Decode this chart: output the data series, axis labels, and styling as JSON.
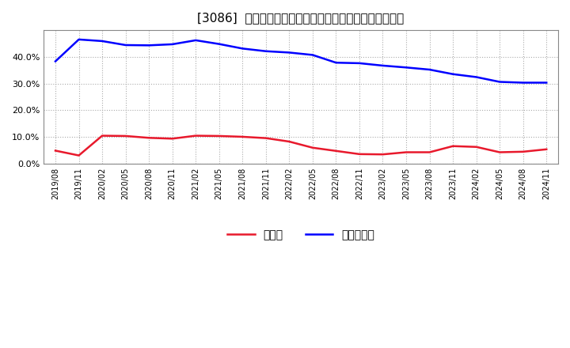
{
  "title": "[3086]  現預金、有利子負債の総資産に対する比率の推移",
  "x_labels": [
    "2019/08",
    "2019/11",
    "2020/02",
    "2020/05",
    "2020/08",
    "2020/11",
    "2021/02",
    "2021/05",
    "2021/08",
    "2021/11",
    "2022/02",
    "2022/05",
    "2022/08",
    "2022/11",
    "2023/02",
    "2023/05",
    "2023/08",
    "2023/11",
    "2024/02",
    "2024/05",
    "2024/08",
    "2024/11"
  ],
  "cash": [
    0.048,
    0.03,
    0.104,
    0.103,
    0.096,
    0.093,
    0.104,
    0.103,
    0.1,
    0.095,
    0.082,
    0.059,
    0.047,
    0.035,
    0.034,
    0.042,
    0.042,
    0.065,
    0.062,
    0.042,
    0.044,
    0.053
  ],
  "debt": [
    0.383,
    0.465,
    0.459,
    0.444,
    0.443,
    0.447,
    0.462,
    0.448,
    0.431,
    0.421,
    0.416,
    0.407,
    0.378,
    0.376,
    0.367,
    0.36,
    0.352,
    0.335,
    0.324,
    0.306,
    0.303,
    0.303
  ],
  "cash_color": "#e8192c",
  "debt_color": "#0000ff",
  "legend_cash": "現預金",
  "legend_debt": "有利子負債",
  "ylim": [
    0.0,
    0.5
  ],
  "yticks": [
    0.0,
    0.1,
    0.2,
    0.3,
    0.4
  ],
  "background_color": "#ffffff",
  "plot_bg_color": "#ffffff",
  "grid_color": "#aaaaaa",
  "title_fontsize": 11,
  "line_width": 1.8
}
